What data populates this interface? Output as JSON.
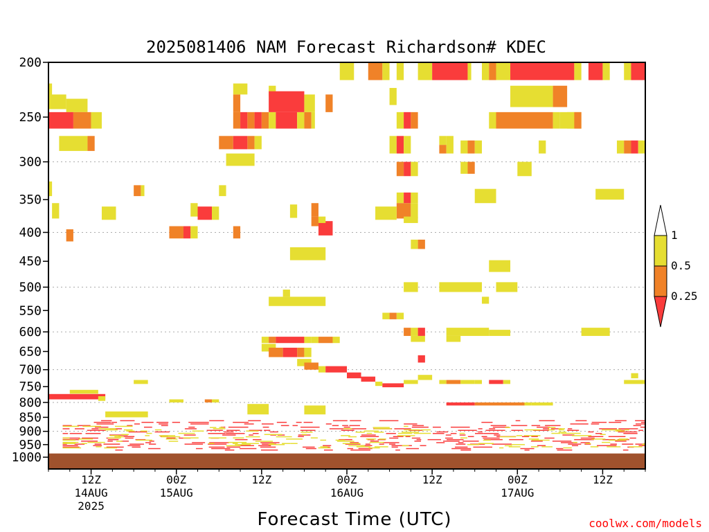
{
  "page": {
    "title": "2025081406 NAM Forecast Richardson# KDEC",
    "credit": "coolwx.com/models"
  },
  "colors": {
    "lt_1": "#e6de32",
    "lt_0_5": "#f08228",
    "lt_0_25": "#fa3c3c",
    "ground": "#a0522d",
    "grid": "#aaaaaa"
  },
  "chart_data": {
    "type": "heatmap",
    "title": "2025081406 NAM Forecast Richardson# KDEC",
    "xlabel": "Forecast Time (UTC)",
    "ylabel": "",
    "x_unit": "hours since 2025-08-14 06Z",
    "xlim": [
      0,
      84
    ],
    "y_scale": "log-pressure",
    "ylim": [
      1000,
      200
    ],
    "y_ticks": [
      200,
      250,
      300,
      350,
      400,
      450,
      500,
      550,
      600,
      650,
      700,
      750,
      800,
      850,
      900,
      950,
      1000
    ],
    "y_gridlines": [
      300,
      400,
      500,
      600,
      700,
      800,
      900,
      1000
    ],
    "x_ticks": [
      {
        "hour": 6,
        "lines": [
          "12Z",
          "14AUG",
          "2025"
        ]
      },
      {
        "hour": 18,
        "lines": [
          "00Z",
          "15AUG"
        ]
      },
      {
        "hour": 30,
        "lines": [
          "12Z"
        ]
      },
      {
        "hour": 42,
        "lines": [
          "00Z",
          "16AUG"
        ]
      },
      {
        "hour": 54,
        "lines": [
          "12Z"
        ]
      },
      {
        "hour": 66,
        "lines": [
          "00Z",
          "17AUG"
        ]
      },
      {
        "hour": 78,
        "lines": [
          "12Z"
        ]
      }
    ],
    "legend": {
      "placement": "right",
      "labels": [
        "1",
        "0.5",
        "0.25"
      ],
      "bins": [
        {
          "range": "0.5-1",
          "color": "#e6de32"
        },
        {
          "range": "0.25-0.5",
          "color": "#f08228"
        },
        {
          "range": "<0.25",
          "color": "#fa3c3c"
        }
      ]
    },
    "ground_below_hpa": 985,
    "cells_note": "approximate regions [hour_start, hour_end, p_top_hPa, p_bottom_hPa, category]",
    "cells": [
      [
        0,
        0.5,
        218,
        232,
        1
      ],
      [
        0,
        2.5,
        228,
        242,
        1
      ],
      [
        2.5,
        5.5,
        232,
        245,
        1
      ],
      [
        0,
        3.5,
        245,
        262,
        3
      ],
      [
        3.5,
        6,
        245,
        262,
        2
      ],
      [
        6,
        7.5,
        245,
        262,
        1
      ],
      [
        1.5,
        5.5,
        270,
        287,
        1
      ],
      [
        5.5,
        6.5,
        270,
        287,
        2
      ],
      [
        0,
        0.5,
        325,
        345,
        1
      ],
      [
        0.5,
        1.5,
        355,
        378,
        1
      ],
      [
        2.5,
        3.5,
        395,
        415,
        2
      ],
      [
        7.5,
        9.5,
        360,
        380,
        1
      ],
      [
        12,
        13,
        330,
        345,
        2
      ],
      [
        13,
        13.5,
        330,
        345,
        1
      ],
      [
        20,
        21,
        355,
        375,
        1
      ],
      [
        21,
        23,
        360,
        380,
        3
      ],
      [
        23,
        24,
        360,
        380,
        1
      ],
      [
        17,
        19,
        390,
        410,
        2
      ],
      [
        19,
        20,
        390,
        410,
        3
      ],
      [
        20,
        21,
        390,
        410,
        1
      ],
      [
        24,
        25,
        330,
        345,
        1
      ],
      [
        26,
        27,
        390,
        410,
        2
      ],
      [
        26,
        27,
        228,
        245,
        2
      ],
      [
        26,
        28,
        218,
        228,
        1
      ],
      [
        26,
        27,
        245,
        262,
        2
      ],
      [
        27,
        28,
        245,
        262,
        3
      ],
      [
        28,
        29,
        245,
        262,
        2
      ],
      [
        29,
        30,
        245,
        262,
        3
      ],
      [
        30,
        31,
        245,
        262,
        2
      ],
      [
        31,
        32,
        245,
        262,
        1
      ],
      [
        32,
        35,
        245,
        262,
        3
      ],
      [
        35,
        36,
        245,
        262,
        1
      ],
      [
        36,
        37,
        245,
        262,
        2
      ],
      [
        37,
        37.5,
        245,
        262,
        1
      ],
      [
        31,
        32,
        220,
        230,
        1
      ],
      [
        31,
        36,
        225,
        245,
        3
      ],
      [
        36,
        37.5,
        228,
        245,
        1
      ],
      [
        39,
        40,
        228,
        245,
        2
      ],
      [
        24,
        26,
        270,
        285,
        2
      ],
      [
        26,
        28,
        270,
        285,
        3
      ],
      [
        28,
        29,
        270,
        285,
        2
      ],
      [
        25,
        29,
        290,
        305,
        1
      ],
      [
        29,
        30,
        270,
        285,
        1
      ],
      [
        34,
        35,
        357,
        377,
        1
      ],
      [
        37,
        38,
        355,
        375,
        2
      ],
      [
        37,
        38,
        375,
        390,
        2
      ],
      [
        38,
        40,
        382,
        405,
        3
      ],
      [
        38,
        39,
        375,
        385,
        1
      ],
      [
        34,
        39,
        425,
        448,
        1
      ],
      [
        31,
        39,
        520,
        540,
        1
      ],
      [
        33,
        34,
        505,
        520,
        1
      ],
      [
        41,
        43,
        200,
        215,
        1
      ],
      [
        45,
        47,
        200,
        215,
        2
      ],
      [
        47,
        48,
        200,
        215,
        1
      ],
      [
        49,
        50,
        200,
        215,
        1
      ],
      [
        52,
        54,
        200,
        215,
        1
      ],
      [
        54,
        59,
        200,
        215,
        3
      ],
      [
        59,
        59.5,
        200,
        215,
        1
      ],
      [
        61,
        62,
        200,
        215,
        1
      ],
      [
        62,
        63,
        200,
        215,
        2
      ],
      [
        63,
        65,
        200,
        215,
        1
      ],
      [
        65,
        74,
        200,
        215,
        3
      ],
      [
        74,
        75,
        200,
        215,
        1
      ],
      [
        76,
        78,
        200,
        215,
        3
      ],
      [
        78,
        79,
        200,
        215,
        1
      ],
      [
        81,
        82,
        200,
        215,
        1
      ],
      [
        82,
        84,
        200,
        215,
        3
      ],
      [
        48,
        49,
        222,
        238,
        1
      ],
      [
        65,
        71,
        220,
        240,
        1
      ],
      [
        71,
        73,
        220,
        240,
        2
      ],
      [
        73,
        75,
        245,
        262,
        1
      ],
      [
        49,
        50,
        245,
        262,
        1
      ],
      [
        50,
        51,
        245,
        262,
        3
      ],
      [
        51,
        52,
        245,
        262,
        2
      ],
      [
        48,
        49,
        270,
        290,
        1
      ],
      [
        49,
        50,
        270,
        290,
        3
      ],
      [
        50,
        51,
        270,
        290,
        1
      ],
      [
        55,
        56,
        270,
        280,
        1
      ],
      [
        55,
        56,
        280,
        290,
        2
      ],
      [
        56,
        57,
        270,
        290,
        1
      ],
      [
        58,
        59,
        275,
        290,
        1
      ],
      [
        59,
        60,
        275,
        290,
        2
      ],
      [
        60,
        61,
        275,
        290,
        1
      ],
      [
        62,
        63,
        245,
        262,
        1
      ],
      [
        63,
        71,
        245,
        262,
        2
      ],
      [
        71,
        72,
        245,
        262,
        1
      ],
      [
        72,
        74,
        245,
        262,
        1
      ],
      [
        74,
        75,
        245,
        262,
        2
      ],
      [
        69,
        70,
        275,
        290,
        1
      ],
      [
        80,
        81,
        275,
        290,
        1
      ],
      [
        81,
        82,
        275,
        290,
        2
      ],
      [
        82,
        83,
        275,
        290,
        3
      ],
      [
        83,
        84,
        275,
        290,
        1
      ],
      [
        49,
        50,
        300,
        318,
        2
      ],
      [
        50,
        51,
        300,
        318,
        3
      ],
      [
        51,
        52,
        300,
        318,
        1
      ],
      [
        58,
        59,
        300,
        315,
        1
      ],
      [
        59,
        60,
        300,
        315,
        2
      ],
      [
        66,
        68,
        300,
        318,
        1
      ],
      [
        49,
        50,
        340,
        355,
        1
      ],
      [
        50,
        51,
        340,
        355,
        3
      ],
      [
        51,
        52,
        340,
        355,
        1
      ],
      [
        49,
        51,
        355,
        378,
        2
      ],
      [
        51,
        52,
        355,
        378,
        1
      ],
      [
        46,
        49,
        360,
        380,
        1
      ],
      [
        50,
        52,
        375,
        385,
        1
      ],
      [
        60,
        63,
        335,
        355,
        1
      ],
      [
        77,
        81,
        335,
        350,
        1
      ],
      [
        51,
        52,
        412,
        428,
        1
      ],
      [
        52,
        53,
        412,
        428,
        2
      ],
      [
        62,
        65,
        448,
        470,
        1
      ],
      [
        50,
        52,
        490,
        510,
        1
      ],
      [
        55,
        61,
        490,
        510,
        1
      ],
      [
        63,
        66,
        490,
        510,
        1
      ],
      [
        61,
        62,
        520,
        535,
        1
      ],
      [
        47,
        48,
        555,
        570,
        1
      ],
      [
        48,
        49,
        555,
        570,
        2
      ],
      [
        49,
        50,
        555,
        570,
        1
      ],
      [
        50,
        51,
        590,
        610,
        2
      ],
      [
        51,
        52,
        590,
        610,
        1
      ],
      [
        52,
        53,
        590,
        610,
        3
      ],
      [
        51,
        53,
        610,
        625,
        1
      ],
      [
        52,
        53,
        660,
        680,
        3
      ],
      [
        56,
        58,
        610,
        625,
        1
      ],
      [
        56,
        62,
        590,
        610,
        1
      ],
      [
        62,
        65,
        595,
        610,
        1
      ],
      [
        75,
        79,
        590,
        610,
        1
      ],
      [
        30,
        31,
        612,
        628,
        1
      ],
      [
        31,
        32,
        612,
        628,
        2
      ],
      [
        32,
        36,
        612,
        628,
        3
      ],
      [
        36,
        37,
        612,
        628,
        1
      ],
      [
        30,
        32,
        630,
        650,
        1
      ],
      [
        31,
        33,
        640,
        665,
        2
      ],
      [
        33,
        35,
        640,
        665,
        3
      ],
      [
        35,
        36,
        640,
        665,
        2
      ],
      [
        36,
        37,
        640,
        665,
        1
      ],
      [
        37,
        38,
        612,
        628,
        1
      ],
      [
        38,
        40,
        612,
        628,
        2
      ],
      [
        40,
        41,
        612,
        628,
        1
      ],
      [
        35,
        37,
        670,
        690,
        1
      ],
      [
        36,
        38,
        680,
        700,
        2
      ],
      [
        38,
        39,
        690,
        708,
        1
      ],
      [
        39,
        42,
        690,
        708,
        3
      ],
      [
        42,
        44,
        708,
        725,
        3
      ],
      [
        44,
        46,
        720,
        735,
        3
      ],
      [
        46,
        47,
        735,
        748,
        1
      ],
      [
        47,
        50,
        740,
        752,
        3
      ],
      [
        50,
        52,
        730,
        742,
        1
      ],
      [
        55,
        56,
        730,
        742,
        1
      ],
      [
        56,
        58,
        730,
        742,
        2
      ],
      [
        58,
        60,
        730,
        742,
        1
      ],
      [
        60,
        61,
        730,
        742,
        1
      ],
      [
        62,
        64,
        730,
        742,
        3
      ],
      [
        64,
        65,
        730,
        742,
        1
      ],
      [
        52,
        54,
        715,
        730,
        1
      ],
      [
        81,
        84,
        730,
        742,
        1
      ],
      [
        82,
        83,
        710,
        725,
        1
      ],
      [
        12,
        14,
        730,
        742,
        1
      ],
      [
        3,
        7,
        760,
        772,
        1
      ],
      [
        0,
        8,
        773,
        790,
        3
      ],
      [
        7,
        8,
        780,
        795,
        1
      ],
      [
        17,
        19,
        790,
        800,
        1
      ],
      [
        22,
        23,
        790,
        800,
        2
      ],
      [
        23,
        24,
        790,
        800,
        1
      ],
      [
        56,
        60,
        800,
        810,
        3
      ],
      [
        60,
        67,
        800,
        810,
        2
      ],
      [
        67,
        68,
        800,
        810,
        1
      ],
      [
        68,
        71,
        800,
        810,
        1
      ],
      [
        8,
        14,
        830,
        850,
        1
      ],
      [
        28,
        31,
        805,
        840,
        1
      ],
      [
        36,
        39,
        810,
        840,
        1
      ],
      [
        2,
        84,
        860,
        975,
        3
      ],
      [
        2,
        84,
        880,
        965,
        1
      ]
    ]
  }
}
